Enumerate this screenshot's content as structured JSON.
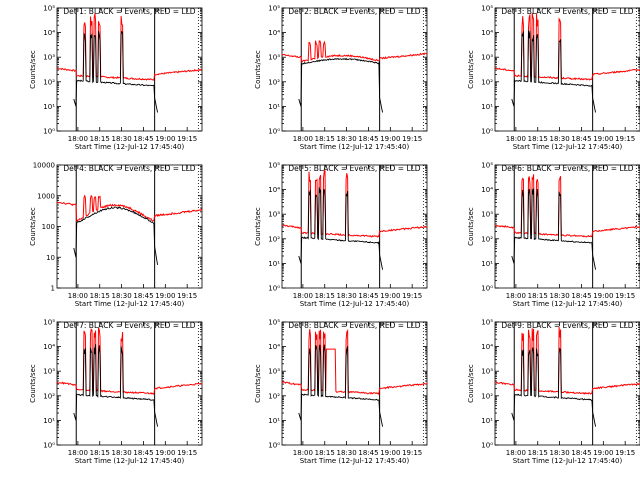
{
  "chart_data": [
    {
      "type": "line",
      "title": "Det 1: BLACK = Events, RED = LLD",
      "xlabel": "Start Time (12-Jul-12 17:45:40)",
      "ylabel": "Counts/sec",
      "yscale": "log",
      "ylim": [
        1,
        100000
      ],
      "yticks": [
        "10⁰",
        "10¹",
        "10²",
        "10³",
        "10⁴",
        "10⁵"
      ],
      "xticks": [
        "18:00",
        "18:15",
        "18:30",
        "18:45",
        "19:00",
        "19:15"
      ],
      "series": [
        {
          "name": "BLACK = Events",
          "color": "#000000"
        },
        {
          "name": "RED = LLD",
          "color": "#ff0000"
        }
      ]
    },
    {
      "type": "line",
      "title": "Det 2: BLACK = Events, RED = LLD",
      "xlabel": "Start Time (12-Jul-12 17:45:40)",
      "ylabel": "Counts/sec",
      "yscale": "log",
      "ylim": [
        1,
        100000
      ],
      "yticks": [
        "10⁰",
        "10¹",
        "10²",
        "10³",
        "10⁴",
        "10⁵"
      ],
      "xticks": [
        "18:00",
        "18:15",
        "18:30",
        "18:45",
        "19:00",
        "19:15"
      ],
      "series": [
        {
          "name": "BLACK = Events",
          "color": "#000000"
        },
        {
          "name": "RED = LLD",
          "color": "#ff0000"
        }
      ]
    },
    {
      "type": "line",
      "title": "Det 3: BLACK = Events, RED = LLD",
      "xlabel": "Start Time (12-Jul-12 17:45:40)",
      "ylabel": "Counts/sec",
      "yscale": "log",
      "ylim": [
        1,
        100000
      ],
      "yticks": [
        "10⁰",
        "10¹",
        "10²",
        "10³",
        "10⁴",
        "10⁵"
      ],
      "xticks": [
        "18:00",
        "18:15",
        "18:30",
        "18:45",
        "19:00",
        "19:15"
      ],
      "series": [
        {
          "name": "BLACK = Events",
          "color": "#000000"
        },
        {
          "name": "RED = LLD",
          "color": "#ff0000"
        }
      ]
    },
    {
      "type": "line",
      "title": "Det 4: BLACK = Events, RED = LLD",
      "xlabel": "Start Time (12-Jul-12 17:45:40)",
      "ylabel": "Counts/sec",
      "yscale": "log",
      "ylim": [
        1,
        10000
      ],
      "yticks": [
        "1",
        "10",
        "100",
        "1000",
        "10000"
      ],
      "xticks": [
        "18:00",
        "18:15",
        "18:30",
        "18:45",
        "19:00",
        "19:15"
      ],
      "series": [
        {
          "name": "BLACK = Events",
          "color": "#000000"
        },
        {
          "name": "RED = LLD",
          "color": "#ff0000"
        }
      ]
    },
    {
      "type": "line",
      "title": "Det 5: BLACK = Events, RED = LLD",
      "xlabel": "Start Time (12-Jul-12 17:45:40)",
      "ylabel": "Counts/sec",
      "yscale": "log",
      "ylim": [
        1,
        100000
      ],
      "yticks": [
        "10⁰",
        "10¹",
        "10²",
        "10³",
        "10⁴",
        "10⁵"
      ],
      "xticks": [
        "18:00",
        "18:15",
        "18:30",
        "18:45",
        "19:00",
        "19:15"
      ],
      "series": [
        {
          "name": "BLACK = Events",
          "color": "#000000"
        },
        {
          "name": "RED = LLD",
          "color": "#ff0000"
        }
      ]
    },
    {
      "type": "line",
      "title": "Det 6: BLACK = Events, RED = LLD",
      "xlabel": "Start Time (12-Jul-12 17:45:40)",
      "ylabel": "Counts/sec",
      "yscale": "log",
      "ylim": [
        1,
        100000
      ],
      "yticks": [
        "10⁰",
        "10¹",
        "10²",
        "10³",
        "10⁴",
        "10⁵"
      ],
      "xticks": [
        "18:00",
        "18:15",
        "18:30",
        "18:45",
        "19:00",
        "19:15"
      ],
      "series": [
        {
          "name": "BLACK = Events",
          "color": "#000000"
        },
        {
          "name": "RED = LLD",
          "color": "#ff0000"
        }
      ]
    },
    {
      "type": "line",
      "title": "Det 7: BLACK = Events, RED = LLD",
      "xlabel": "Start Time (12-Jul-12 17:45:40)",
      "ylabel": "Counts/sec",
      "yscale": "log",
      "ylim": [
        1,
        100000
      ],
      "yticks": [
        "10⁰",
        "10¹",
        "10²",
        "10³",
        "10⁴",
        "10⁵"
      ],
      "xticks": [
        "18:00",
        "18:15",
        "18:30",
        "18:45",
        "19:00",
        "19:15"
      ],
      "series": [
        {
          "name": "BLACK = Events",
          "color": "#000000"
        },
        {
          "name": "RED = LLD",
          "color": "#ff0000"
        }
      ]
    },
    {
      "type": "line",
      "title": "Det 8: BLACK = Events, RED = LLD",
      "xlabel": "Start Time (12-Jul-12 17:45:40)",
      "ylabel": "Counts/sec",
      "yscale": "log",
      "ylim": [
        1,
        100000
      ],
      "yticks": [
        "10⁰",
        "10¹",
        "10²",
        "10³",
        "10⁴",
        "10⁵"
      ],
      "xticks": [
        "18:00",
        "18:15",
        "18:30",
        "18:45",
        "19:00",
        "19:15"
      ],
      "series": [
        {
          "name": "BLACK = Events",
          "color": "#000000"
        },
        {
          "name": "RED = LLD",
          "color": "#ff0000"
        }
      ]
    },
    {
      "type": "line",
      "title": "Det 9: BLACK = Events, RED = LLD",
      "xlabel": "Start Time (12-Jul-12 17:45:40)",
      "ylabel": "Counts/sec",
      "yscale": "log",
      "ylim": [
        1,
        100000
      ],
      "yticks": [
        "10⁰",
        "10¹",
        "10²",
        "10³",
        "10⁴",
        "10⁵"
      ],
      "xticks": [
        "18:00",
        "18:15",
        "18:30",
        "18:45",
        "19:00",
        "19:15"
      ],
      "series": [
        {
          "name": "BLACK = Events",
          "color": "#000000"
        },
        {
          "name": "RED = LLD",
          "color": "#ff0000"
        }
      ]
    }
  ]
}
